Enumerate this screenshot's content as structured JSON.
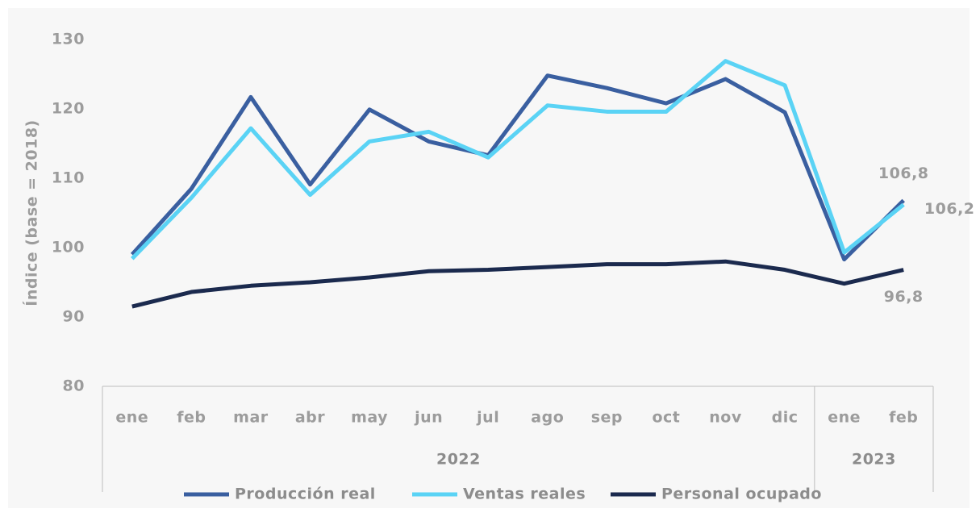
{
  "chart_data": {
    "type": "line",
    "y_label": "Índice (base = 2018)",
    "categories": [
      "ene",
      "feb",
      "mar",
      "abr",
      "may",
      "jun",
      "jul",
      "ago",
      "sep",
      "oct",
      "nov",
      "dic",
      "ene",
      "feb"
    ],
    "groups": [
      {
        "label": "2022",
        "count": 12
      },
      {
        "label": "2023",
        "count": 2
      }
    ],
    "ylim": [
      80,
      130
    ],
    "yticks": [
      80,
      90,
      100,
      110,
      120,
      130
    ],
    "grid": false,
    "legend": "bottom",
    "series": [
      {
        "name": "Producción real",
        "color": "#3a5fa0",
        "values": [
          99.0,
          108.5,
          121.7,
          109.1,
          119.9,
          115.3,
          113.3,
          124.8,
          123.0,
          120.8,
          124.3,
          119.5,
          98.3,
          106.8
        ],
        "value_labels": [
          null,
          null,
          null,
          null,
          null,
          null,
          null,
          null,
          null,
          null,
          null,
          null,
          null,
          "106,8"
        ]
      },
      {
        "name": "Ventas reales",
        "color": "#5ad3f5",
        "values": [
          98.4,
          107.2,
          117.2,
          107.6,
          115.3,
          116.7,
          113.0,
          120.5,
          119.6,
          119.6,
          126.9,
          123.4,
          99.3,
          106.2
        ],
        "value_labels": [
          null,
          null,
          null,
          null,
          null,
          null,
          null,
          null,
          null,
          null,
          null,
          null,
          null,
          "106,2"
        ]
      },
      {
        "name": "Personal ocupado",
        "color": "#1b2a4e",
        "values": [
          91.5,
          93.6,
          94.5,
          95.0,
          95.7,
          96.6,
          96.8,
          97.2,
          97.6,
          97.6,
          98.0,
          96.8,
          94.8,
          96.8
        ],
        "value_labels": [
          null,
          null,
          null,
          null,
          null,
          null,
          null,
          null,
          null,
          null,
          null,
          null,
          null,
          "96,8"
        ]
      }
    ]
  }
}
